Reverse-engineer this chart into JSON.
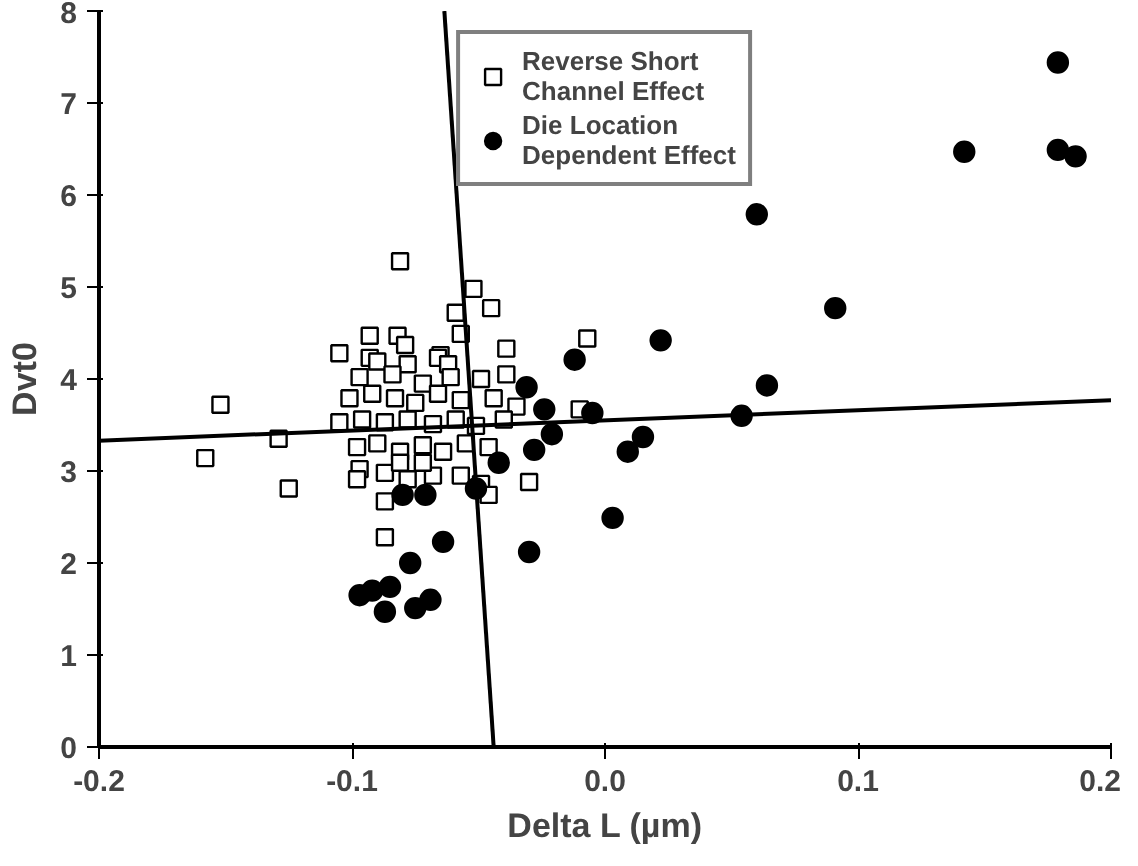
{
  "chart_data": {
    "type": "scatter",
    "xlabel": "Delta L (µm)",
    "ylabel": "Dvt0",
    "xlim": [
      -0.2,
      0.2
    ],
    "xticks": [
      -0.2,
      -0.1,
      {
        "value": 0,
        "label": "0.0"
      },
      0.1,
      0.2
    ],
    "ylim": [
      0,
      8
    ],
    "yticks": [
      0,
      1,
      2,
      3,
      4,
      5,
      6,
      7,
      8
    ],
    "grid": false,
    "legend": "top",
    "series": [
      {
        "name": "Reverse Short Channel Effect",
        "marker": "square",
        "color": "#000000",
        "x": [
          -0.081,
          -0.052,
          -0.059,
          -0.045,
          -0.057,
          -0.093,
          -0.082,
          -0.079,
          -0.105,
          -0.065,
          -0.039,
          -0.007,
          -0.152,
          -0.158,
          -0.129,
          -0.125,
          -0.087,
          -0.087,
          -0.093,
          -0.09,
          -0.078,
          -0.066,
          -0.062,
          -0.097,
          -0.084,
          -0.072,
          -0.061,
          -0.049,
          -0.039,
          -0.101,
          -0.092,
          -0.083,
          -0.075,
          -0.066,
          -0.057,
          -0.044,
          -0.035,
          -0.01,
          -0.105,
          -0.096,
          -0.087,
          -0.078,
          -0.068,
          -0.059,
          -0.051,
          -0.04,
          -0.098,
          -0.09,
          -0.081,
          -0.072,
          -0.064,
          -0.055,
          -0.046,
          -0.097,
          -0.087,
          -0.078,
          -0.068,
          -0.057,
          -0.049,
          -0.098,
          -0.046,
          -0.03,
          -0.072,
          -0.081
        ],
        "values": [
          5.28,
          4.98,
          4.72,
          4.77,
          4.49,
          4.47,
          4.47,
          4.37,
          4.28,
          4.26,
          4.33,
          4.44,
          3.72,
          3.14,
          3.35,
          2.81,
          2.28,
          2.67,
          4.23,
          4.19,
          4.16,
          4.23,
          4.16,
          4.02,
          4.05,
          3.95,
          4.02,
          4.0,
          4.05,
          3.79,
          3.84,
          3.79,
          3.74,
          3.84,
          3.77,
          3.79,
          3.7,
          3.67,
          3.53,
          3.56,
          3.53,
          3.56,
          3.51,
          3.56,
          3.49,
          3.56,
          3.26,
          3.3,
          3.21,
          3.28,
          3.21,
          3.3,
          3.26,
          3.02,
          2.98,
          2.91,
          2.95,
          2.95,
          2.86,
          2.91,
          2.74,
          2.88,
          3.09,
          3.09
        ]
      },
      {
        "name": "Die Location Dependent Effect",
        "marker": "circle",
        "color": "#000000",
        "x": [
          0.179,
          0.142,
          0.179,
          0.186,
          0.06,
          0.091,
          0.022,
          0.064,
          0.054,
          0.015,
          0.009,
          0.003,
          -0.012,
          -0.031,
          -0.024,
          -0.005,
          -0.021,
          -0.028,
          -0.042,
          -0.051,
          -0.08,
          -0.071,
          -0.03,
          -0.064,
          -0.077,
          -0.097,
          -0.092,
          -0.085,
          -0.087,
          -0.075,
          -0.069
        ],
        "values": [
          7.44,
          6.47,
          6.49,
          6.42,
          5.79,
          4.77,
          4.42,
          3.93,
          3.6,
          3.37,
          3.21,
          2.49,
          4.21,
          3.91,
          3.67,
          3.63,
          3.4,
          3.23,
          3.09,
          2.81,
          2.74,
          2.74,
          2.12,
          2.23,
          2.0,
          1.65,
          1.7,
          1.74,
          1.47,
          1.51,
          1.6
        ]
      },
      {
        "type": "line",
        "color": "#000000",
        "x": [
          -0.2,
          0.2
        ],
        "values": [
          3.33,
          3.77
        ]
      },
      {
        "type": "line",
        "color": "#000000",
        "x": [
          -0.0635,
          -0.044
        ],
        "values": [
          8.0,
          0.0
        ]
      }
    ]
  }
}
